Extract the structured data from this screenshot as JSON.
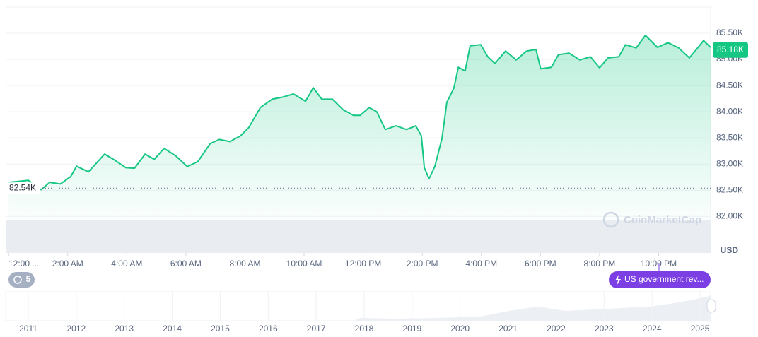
{
  "chart_data": {
    "type": "line",
    "x": [
      0,
      0.67,
      1.1,
      1.39,
      1.75,
      2.1,
      2.3,
      2.7,
      3.25,
      3.55,
      3.97,
      4.26,
      4.62,
      4.93,
      5.26,
      5.65,
      6.05,
      6.41,
      6.82,
      7.13,
      7.49,
      7.85,
      8.13,
      8.52,
      8.92,
      9.28,
      9.64,
      10.05,
      10.31,
      10.6,
      10.96,
      11.32,
      11.67,
      11.9,
      12.2,
      12.46,
      12.75,
      13.11,
      13.47,
      13.78,
      13.97,
      14.07,
      14.23,
      14.43,
      14.67,
      14.83,
      15.07,
      15.22,
      15.45,
      15.62,
      15.98,
      16.22,
      16.46,
      16.82,
      17.18,
      17.53,
      17.85,
      18.01,
      18.37,
      18.61,
      18.97,
      19.33,
      19.69,
      20.0,
      20.29,
      20.65,
      20.88,
      21.24,
      21.55,
      21.96,
      22.32,
      22.68,
      23.04,
      23.28,
      23.52,
      23.76
    ],
    "values": [
      82650,
      82690,
      82510,
      82650,
      82620,
      82760,
      82960,
      82850,
      83190,
      83090,
      82930,
      82920,
      83190,
      83090,
      83300,
      83160,
      82950,
      83050,
      83390,
      83470,
      83430,
      83540,
      83700,
      84080,
      84240,
      84280,
      84340,
      84200,
      84460,
      84240,
      84240,
      84040,
      83930,
      83930,
      84080,
      84000,
      83660,
      83730,
      83660,
      83730,
      83540,
      82930,
      82720,
      82960,
      83500,
      84180,
      84450,
      84850,
      84780,
      85260,
      85280,
      85050,
      84920,
      85160,
      84990,
      85160,
      85190,
      84820,
      84850,
      85090,
      85120,
      84990,
      85050,
      84840,
      85030,
      85050,
      85280,
      85220,
      85460,
      85230,
      85320,
      85220,
      85030,
      85190,
      85360,
      85230
    ],
    "color": "#16c784",
    "xlim": [
      -0.1,
      23.76
    ],
    "xticks": [
      {
        "value": 0,
        "label": "12:00 ..."
      },
      {
        "value": 2,
        "label": "2:00 AM"
      },
      {
        "value": 4,
        "label": "4:00 AM"
      },
      {
        "value": 6,
        "label": "6:00 AM"
      },
      {
        "value": 8,
        "label": "8:00 AM"
      },
      {
        "value": 10,
        "label": "10:00 AM"
      },
      {
        "value": 12,
        "label": "12:00 PM"
      },
      {
        "value": 14,
        "label": "2:00 PM"
      },
      {
        "value": 16,
        "label": "4:00 PM"
      },
      {
        "value": 18,
        "label": "6:00 PM"
      },
      {
        "value": 20,
        "label": "8:00 PM"
      },
      {
        "value": 22,
        "label": "10:00 PM"
      }
    ],
    "ylim": [
      81950,
      86000
    ],
    "yticks": [
      {
        "value": 82000,
        "label": "82.00K"
      },
      {
        "value": 82500,
        "label": "82.50K"
      },
      {
        "value": 83000,
        "label": "83.00K"
      },
      {
        "value": 83500,
        "label": "83.50K"
      },
      {
        "value": 84000,
        "label": "84.00K"
      },
      {
        "value": 84500,
        "label": "84.50K"
      },
      {
        "value": 85000,
        "label": "85.00K"
      },
      {
        "value": 85500,
        "label": "85.50K"
      }
    ],
    "grid": true,
    "y_unit": "USD",
    "reference_line": {
      "value": 82540,
      "label": "82.54K"
    },
    "current_price": {
      "value": 85180,
      "label": "85.18K"
    },
    "watermark": "CoinMarketCap",
    "event_count": "5",
    "event_label": "US government rev...",
    "navigator_years": [
      "2011",
      "2012",
      "2013",
      "2014",
      "2015",
      "2016",
      "2017",
      "2018",
      "2019",
      "2020",
      "2021",
      "2022",
      "2023",
      "2024",
      "2025"
    ]
  }
}
